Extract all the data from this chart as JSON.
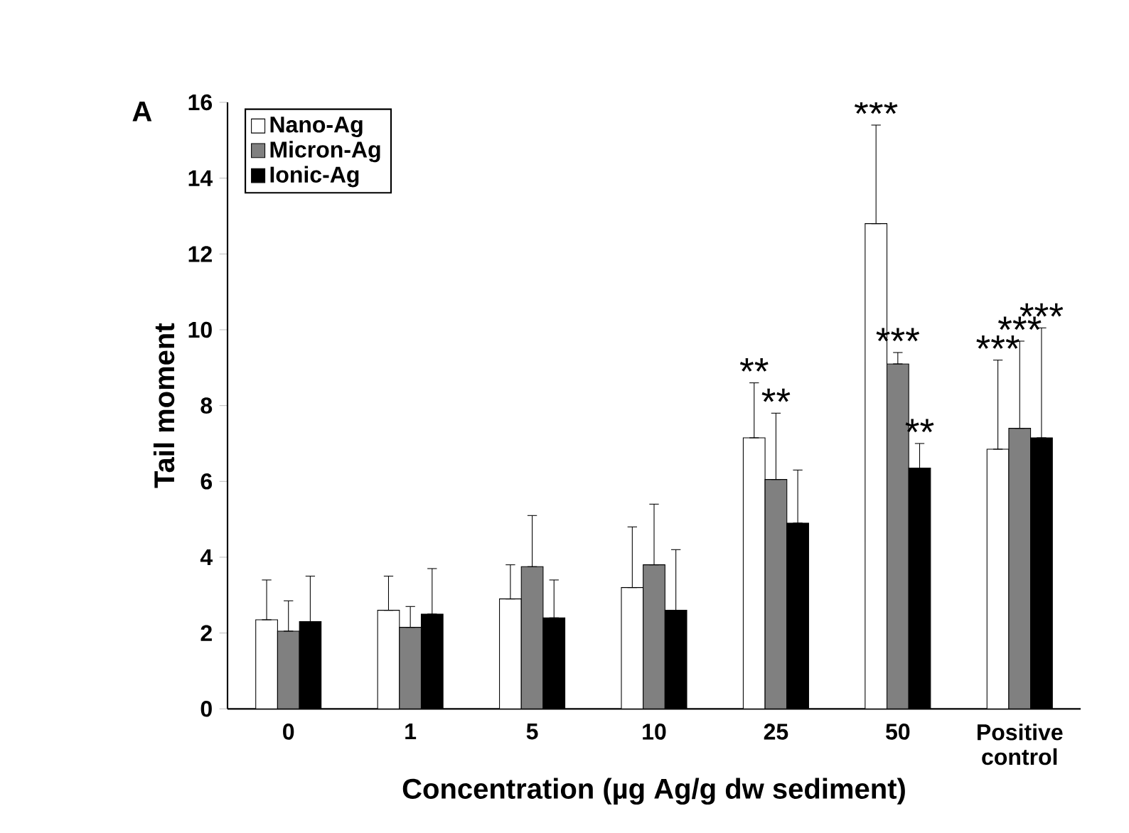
{
  "chart_data": {
    "type": "bar",
    "xlabel": "Concentration (µg Ag/g dw sediment)",
    "ylabel": "Tail moment",
    "categories": [
      "0",
      "1",
      "5",
      "10",
      "25",
      "50",
      "Positive control"
    ],
    "series": [
      {
        "name": "Nano-Ag",
        "color": "#ffffff",
        "values": [
          2.35,
          2.6,
          2.9,
          3.2,
          7.15,
          12.8,
          6.85
        ],
        "errors": [
          [
            2.35,
            3.4
          ],
          [
            2.6,
            3.5
          ],
          [
            2.9,
            3.8
          ],
          [
            3.2,
            4.8
          ],
          [
            7.15,
            8.6
          ],
          [
            12.8,
            15.4
          ],
          [
            6.85,
            9.2
          ]
        ]
      },
      {
        "name": "Micron-Ag",
        "color": "#808080",
        "values": [
          2.05,
          2.15,
          3.75,
          3.8,
          6.05,
          9.1,
          7.4
        ],
        "errors": [
          [
            2.05,
            2.85
          ],
          [
            2.15,
            2.7
          ],
          [
            3.75,
            5.1
          ],
          [
            3.8,
            5.4
          ],
          [
            6.05,
            7.8
          ],
          [
            9.1,
            9.4
          ],
          [
            7.4,
            9.7
          ]
        ]
      },
      {
        "name": "Ionic-Ag",
        "color": "#000000",
        "values": [
          2.3,
          2.5,
          2.4,
          2.6,
          4.9,
          6.35,
          7.15
        ],
        "errors": [
          [
            2.3,
            3.5
          ],
          [
            2.5,
            3.7
          ],
          [
            2.4,
            3.4
          ],
          [
            2.6,
            4.2
          ],
          [
            4.9,
            6.3
          ],
          [
            6.35,
            7.0
          ],
          [
            7.15,
            10.05
          ]
        ]
      }
    ],
    "ylim": [
      0,
      16
    ],
    "yticks": [
      0,
      2,
      4,
      6,
      8,
      10,
      12,
      14,
      16
    ],
    "grid": false,
    "legend": "top left",
    "annotations": [
      "A",
      "**",
      "**",
      "***",
      "***",
      "**",
      "***",
      "***",
      "***"
    ]
  }
}
